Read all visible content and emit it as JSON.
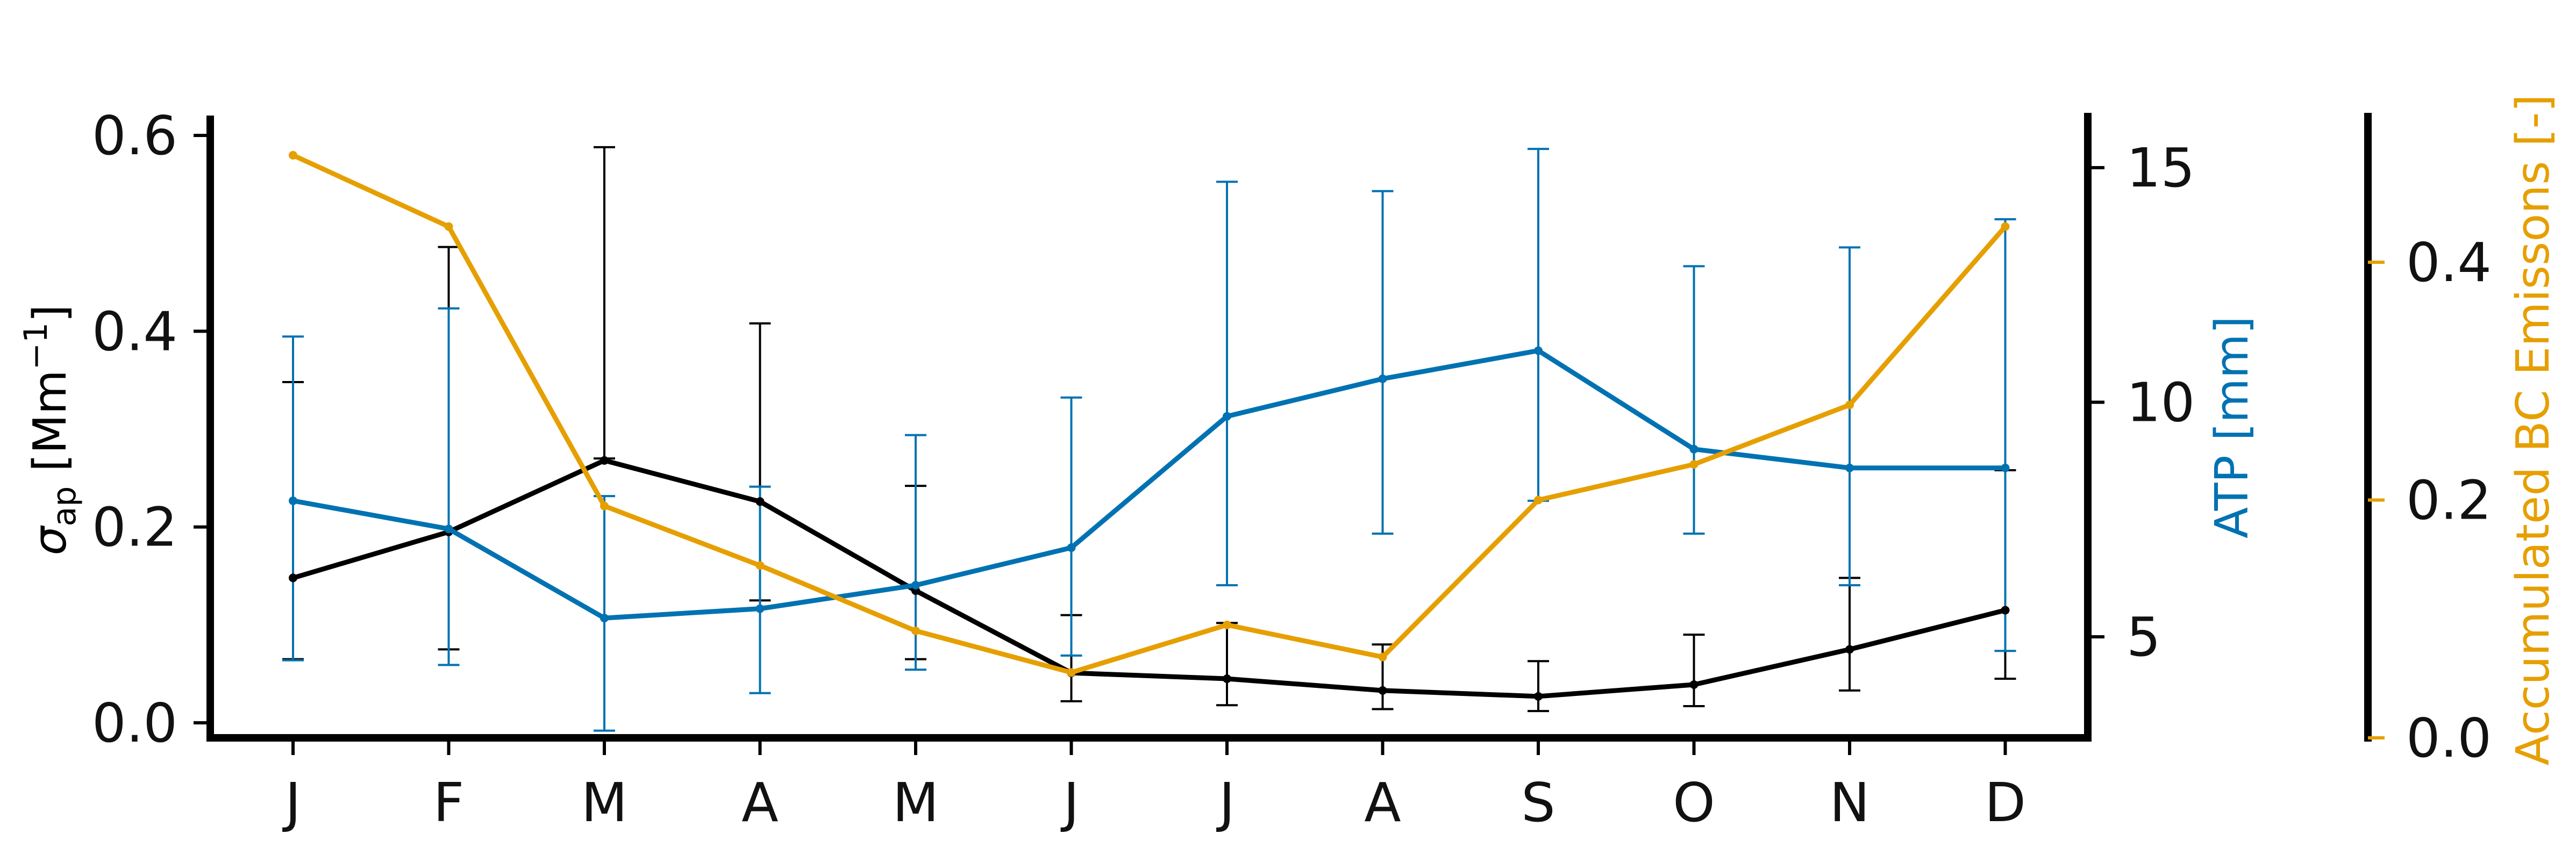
{
  "chart_data": {
    "type": "line",
    "categories": [
      "J",
      "F",
      "M",
      "A",
      "M",
      "J",
      "J",
      "A",
      "S",
      "O",
      "N",
      "D"
    ],
    "axes": {
      "left": {
        "label": "σ_ap [Mm⁻¹]",
        "label_base": "σ",
        "label_sub": "ap",
        "label_rest": " [Mm",
        "label_sup": "−1",
        "label_end": "]",
        "ylim": [
          0,
          0.62
        ],
        "ticks": [
          "0.0",
          "0.2",
          "0.4",
          "0.6"
        ],
        "color": "#000000"
      },
      "right": {
        "label": "ATP [mm]",
        "ylim": [
          2.3,
          16.0
        ],
        "ticks": [
          "5",
          "10",
          "15"
        ],
        "color": "#0072b2"
      },
      "far_right": {
        "label_parts": [
          "Accumulated ",
          "BC",
          " Emissons [-]"
        ],
        "ylim": [
          0,
          0.52
        ],
        "ticks": [
          "0.0",
          "0.2",
          "0.4"
        ],
        "color": "#e69f00"
      }
    },
    "series": [
      {
        "axis": "left",
        "color": "#000000",
        "values": [
          0.148,
          0.195,
          0.268,
          0.226,
          0.135,
          0.051,
          0.045,
          0.033,
          0.027,
          0.039,
          0.075,
          0.115
        ],
        "err_low": [
          0.065,
          0.075,
          0.27,
          0.125,
          0.065,
          0.022,
          0.018,
          0.014,
          0.012,
          0.017,
          0.033,
          0.045
        ],
        "err_high": [
          0.348,
          0.486,
          0.588,
          0.408,
          0.242,
          0.11,
          0.102,
          0.08,
          0.063,
          0.09,
          0.148,
          0.258
        ]
      },
      {
        "axis": "right",
        "color": "#0072b2",
        "values": [
          7.9,
          7.3,
          5.4,
          5.6,
          6.1,
          6.9,
          9.7,
          10.5,
          11.1,
          9.0,
          8.6,
          8.6
        ],
        "err_low": [
          4.5,
          4.4,
          3.0,
          3.8,
          4.3,
          4.6,
          6.1,
          7.2,
          7.9,
          7.2,
          6.1,
          4.7
        ],
        "err_high": [
          11.4,
          12.0,
          8.0,
          8.2,
          9.3,
          10.1,
          14.7,
          14.5,
          15.4,
          12.9,
          13.3,
          13.9
        ]
      },
      {
        "axis": "far_right",
        "color": "#e69f00",
        "values": [
          0.49,
          0.43,
          0.195,
          0.145,
          0.09,
          0.055,
          0.095,
          0.068,
          0.2,
          0.23,
          0.28,
          0.43
        ]
      }
    ]
  }
}
